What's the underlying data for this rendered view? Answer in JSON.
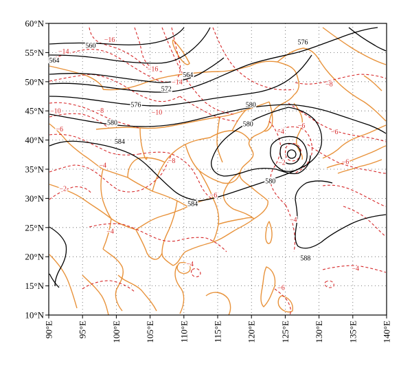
{
  "map": {
    "lon_range": [
      90,
      140
    ],
    "lat_range": [
      10,
      60
    ],
    "grid": "dotted",
    "lat_ticks": [
      {
        "value": 60,
        "label": "60°N"
      },
      {
        "value": 55,
        "label": "55°N"
      },
      {
        "value": 50,
        "label": "50°N"
      },
      {
        "value": 45,
        "label": "45°N"
      },
      {
        "value": 40,
        "label": "40°N"
      },
      {
        "value": 35,
        "label": "35°N"
      },
      {
        "value": 30,
        "label": "30°N"
      },
      {
        "value": 25,
        "label": "25°N"
      },
      {
        "value": 20,
        "label": "20°N"
      },
      {
        "value": 15,
        "label": "15°N"
      },
      {
        "value": 10,
        "label": "10°N"
      }
    ],
    "lon_ticks": [
      {
        "value": 90,
        "label": "90°E"
      },
      {
        "value": 95,
        "label": "95°E"
      },
      {
        "value": 100,
        "label": "100°E"
      },
      {
        "value": 105,
        "label": "105°E"
      },
      {
        "value": 110,
        "label": "110°E"
      },
      {
        "value": 115,
        "label": "115°E"
      },
      {
        "value": 120,
        "label": "120°E"
      },
      {
        "value": 125,
        "label": "125°E"
      },
      {
        "value": 130,
        "label": "130°E"
      },
      {
        "value": 135,
        "label": "135°E"
      },
      {
        "value": 140,
        "label": "140°E"
      }
    ],
    "colors": {
      "geopotential": "#000000",
      "temperature": "#d62728",
      "boundaries": "#e8923a"
    },
    "geopotential_labels": [
      {
        "text": "560",
        "lon": 96.2,
        "lat": 56.2
      },
      {
        "text": "564",
        "lon": 90.8,
        "lat": 53.7
      },
      {
        "text": "564",
        "lon": 110.6,
        "lat": 51.2
      },
      {
        "text": "572",
        "lon": 107.4,
        "lat": 48.8
      },
      {
        "text": "576",
        "lon": 102.9,
        "lat": 46.1
      },
      {
        "text": "576",
        "lon": 127.6,
        "lat": 56.8
      },
      {
        "text": "580",
        "lon": 119.9,
        "lat": 46.1
      },
      {
        "text": "580",
        "lon": 99.4,
        "lat": 43.0
      },
      {
        "text": "580",
        "lon": 119.5,
        "lat": 42.8
      },
      {
        "text": "584",
        "lon": 100.5,
        "lat": 39.8
      },
      {
        "text": "580",
        "lon": 122.8,
        "lat": 33.0
      },
      {
        "text": "584",
        "lon": 111.3,
        "lat": 29.1
      },
      {
        "text": "588",
        "lon": 128.0,
        "lat": 19.8
      }
    ],
    "temperature_labels": [
      {
        "text": "−14",
        "lon": 92.2,
        "lat": 55.2
      },
      {
        "text": "−16",
        "lon": 99.0,
        "lat": 57.2
      },
      {
        "text": "−16",
        "lon": 105.4,
        "lat": 52.2
      },
      {
        "text": "−14",
        "lon": 109.0,
        "lat": 50.0
      },
      {
        "text": "−8",
        "lon": 131.5,
        "lat": 49.6
      },
      {
        "text": "−10",
        "lon": 91.0,
        "lat": 45.0
      },
      {
        "text": "−8",
        "lon": 97.6,
        "lat": 45.1
      },
      {
        "text": "−10",
        "lon": 106.0,
        "lat": 44.8
      },
      {
        "text": "−6",
        "lon": 91.6,
        "lat": 41.9
      },
      {
        "text": "−4",
        "lon": 124.3,
        "lat": 41.5
      },
      {
        "text": "−6",
        "lon": 127.4,
        "lat": 42.5
      },
      {
        "text": "−6",
        "lon": 132.3,
        "lat": 41.4
      },
      {
        "text": "−8",
        "lon": 108.2,
        "lat": 36.5
      },
      {
        "text": "−4",
        "lon": 98.0,
        "lat": 35.7
      },
      {
        "text": "−2",
        "lon": 124.5,
        "lat": 36.2
      },
      {
        "text": "−6",
        "lon": 133.9,
        "lat": 36.3
      },
      {
        "text": "−2",
        "lon": 92.1,
        "lat": 31.7
      },
      {
        "text": "−6",
        "lon": 114.4,
        "lat": 30.6
      },
      {
        "text": "−4",
        "lon": 126.2,
        "lat": 26.4
      },
      {
        "text": "−4",
        "lon": 99.1,
        "lat": 24.4
      },
      {
        "text": "−4",
        "lon": 110.9,
        "lat": 18.8
      },
      {
        "text": "−4",
        "lon": 135.4,
        "lat": 18.0
      },
      {
        "text": "−6",
        "lon": 124.4,
        "lat": 14.7
      }
    ]
  }
}
